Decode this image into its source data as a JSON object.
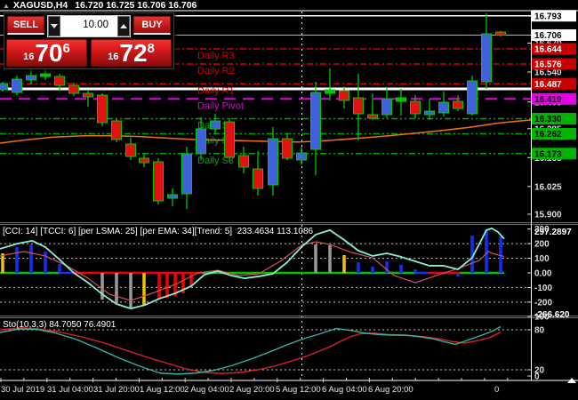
{
  "window": {
    "menu_icon": "▲",
    "symbol_title": "XAGUSD,H4",
    "ohlc": "16.720 16.725 16.706 16.706"
  },
  "trade_panel": {
    "sell_label": "SELL",
    "buy_label": "BUY",
    "volume": "10.00",
    "sell_price": {
      "prefix": "16",
      "main": "70",
      "sup": "6"
    },
    "buy_price": {
      "prefix": "16",
      "main": "72",
      "sup": "8"
    }
  },
  "colors": {
    "bull": "#3E63D8",
    "bear": "#E01212",
    "outline": "#00C800",
    "pivot_r": "#D40000",
    "pivot_p": "#E400E4",
    "pivot_s": "#00A800",
    "ma": "#F07018",
    "bid_line": "#AFAFBE",
    "white_level": "#FFFFFF",
    "cci_fast": "#8BEED0",
    "cci_slow": "#D45454",
    "sto_main": "#38B2A8",
    "sto_signal": "#E02020",
    "hist": {
      "b": "#1430F0",
      "g": "#9A9A9A",
      "y": "#EFC400",
      "r": "#F00000",
      "zg": "#00C000",
      "zb": "#1430F0",
      "zr": "#F00000"
    },
    "axis_text": "#DCDCDC",
    "grid": "#C8C8C8"
  },
  "chart_data": {
    "main": {
      "type": "candlestick",
      "symbol": "XAGUSD",
      "timeframe": "H4",
      "bid_line": 16.706,
      "white_levels": [
        16.793,
        16.464
      ],
      "period_separator_x": 339.5,
      "pivot_lines": [
        {
          "label": "Daily R3",
          "value": 16.644,
          "type": "r"
        },
        {
          "label": "Daily R2",
          "value": 16.576,
          "type": "r"
        },
        {
          "label": "Daily R1",
          "value": 16.487,
          "type": "r"
        },
        {
          "label": "Daily Pivot",
          "value": 16.419,
          "type": "p"
        },
        {
          "label": "Daily S1",
          "value": 16.33,
          "type": "s"
        },
        {
          "label": "Daily S2",
          "value": 16.262,
          "type": "s"
        },
        {
          "label": "Daily S3",
          "value": 16.173,
          "type": "s"
        }
      ],
      "ma_series": [
        [
          0,
          16.22
        ],
        [
          30,
          16.235
        ],
        [
          60,
          16.247
        ],
        [
          95,
          16.253
        ],
        [
          130,
          16.253
        ],
        [
          160,
          16.249
        ],
        [
          190,
          16.242
        ],
        [
          220,
          16.236
        ],
        [
          250,
          16.233
        ],
        [
          280,
          16.23
        ],
        [
          310,
          16.227
        ],
        [
          335,
          16.225
        ],
        [
          355,
          16.228
        ],
        [
          380,
          16.235
        ],
        [
          410,
          16.244
        ],
        [
          440,
          16.254
        ],
        [
          470,
          16.266
        ],
        [
          500,
          16.278
        ],
        [
          530,
          16.292
        ],
        [
          560,
          16.31
        ],
        [
          580,
          16.318
        ],
        [
          597,
          16.324
        ]
      ],
      "candles": [
        [
          3,
          16.46,
          16.496,
          16.452,
          16.488,
          "bull"
        ],
        [
          19,
          16.448,
          16.524,
          16.436,
          16.508,
          "bull"
        ],
        [
          35,
          16.504,
          16.576,
          16.484,
          16.524,
          "bull"
        ],
        [
          51,
          16.52,
          16.58,
          16.504,
          16.532,
          "doji"
        ],
        [
          67,
          16.52,
          16.532,
          16.46,
          16.48,
          "bear"
        ],
        [
          83,
          16.48,
          16.492,
          16.432,
          16.444,
          "bear"
        ],
        [
          99,
          16.444,
          16.456,
          16.384,
          16.428,
          "bear"
        ],
        [
          115,
          16.436,
          16.444,
          16.296,
          16.312,
          "bear"
        ],
        [
          131,
          16.32,
          16.332,
          16.224,
          16.236,
          "bear"
        ],
        [
          147,
          16.216,
          16.244,
          16.144,
          16.16,
          "bear"
        ],
        [
          162,
          16.152,
          16.176,
          16.112,
          16.132,
          "bear"
        ],
        [
          178,
          16.136,
          16.152,
          15.944,
          15.96,
          "bear"
        ],
        [
          194,
          15.972,
          16.016,
          15.936,
          15.988,
          "bull"
        ],
        [
          210,
          15.992,
          16.204,
          15.924,
          16.172,
          "bull"
        ],
        [
          226,
          16.172,
          16.336,
          16.144,
          16.284,
          "bull"
        ],
        [
          242,
          16.284,
          16.352,
          16.264,
          16.32,
          "bull"
        ],
        [
          258,
          16.316,
          16.332,
          16.136,
          16.156,
          "bear"
        ],
        [
          274,
          16.164,
          16.204,
          16.084,
          16.112,
          "bear"
        ],
        [
          290,
          16.104,
          16.184,
          15.984,
          16.016,
          "bear"
        ],
        [
          307,
          16.032,
          16.292,
          15.984,
          16.24,
          "bull"
        ],
        [
          323,
          16.24,
          16.264,
          16.144,
          16.152,
          "bear"
        ],
        [
          339,
          16.144,
          16.204,
          16.124,
          16.176,
          "bull"
        ],
        [
          355,
          16.192,
          16.496,
          16.076,
          16.448,
          "bull"
        ],
        [
          371,
          16.444,
          16.556,
          16.412,
          16.46,
          "doji"
        ],
        [
          387,
          16.456,
          16.476,
          16.376,
          16.412,
          "bear"
        ],
        [
          403,
          16.424,
          16.532,
          16.232,
          16.352,
          "bear"
        ],
        [
          419,
          16.348,
          16.444,
          16.324,
          16.332,
          "bear"
        ],
        [
          435,
          16.348,
          16.472,
          16.332,
          16.42,
          "bull"
        ],
        [
          451,
          16.408,
          16.464,
          16.344,
          16.424,
          "doji"
        ],
        [
          467,
          16.408,
          16.436,
          16.332,
          16.352,
          "bear"
        ],
        [
          483,
          16.348,
          16.42,
          16.324,
          16.364,
          "bull"
        ],
        [
          499,
          16.356,
          16.452,
          16.34,
          16.404,
          "bull"
        ],
        [
          515,
          16.408,
          16.436,
          16.364,
          16.376,
          "bear"
        ],
        [
          531,
          16.352,
          16.524,
          16.344,
          16.5,
          "bull"
        ],
        [
          547,
          16.496,
          16.804,
          16.464,
          16.712,
          "bull"
        ],
        [
          563,
          16.72,
          16.725,
          16.7,
          16.706,
          "bear"
        ]
      ],
      "price_axis": {
        "plain_labels": [
          "16.670",
          "16.540",
          "16.405",
          "16.285",
          "16.155",
          "16.025",
          "15.900"
        ],
        "boxes": [
          {
            "t": "16.793",
            "bg": "#FFFFFF",
            "fg": "#000000"
          },
          {
            "t": "16.706",
            "bg": "#FFFFFF",
            "fg": "#000000"
          },
          {
            "t": "16.644",
            "bg": "#C80000",
            "fg": "#FFFFFF"
          },
          {
            "t": "16.576",
            "bg": "#C80000",
            "fg": "#FFFFFF"
          },
          {
            "t": "16.487",
            "bg": "#C80000",
            "fg": "#FFFFFF"
          },
          {
            "t": "16.419",
            "bg": "#E800E8",
            "fg": "#000000"
          },
          {
            "t": "16.330",
            "bg": "#00B400",
            "fg": "#000000"
          },
          {
            "t": "16.262",
            "bg": "#00B400",
            "fg": "#000000"
          },
          {
            "t": "16.173",
            "bg": "#00B400",
            "fg": "#000000"
          }
        ]
      }
    },
    "cci": {
      "type": "bar",
      "label": "[CCI: 14] [TCCI: 6] [per LSMA: 25] [per EMA: 34][Trend: 5]  233.4634 113.1086",
      "current_values": [
        233.4634,
        113.1086
      ],
      "axis_labels": [
        [
          300,
          "300"
        ],
        [
          200,
          "200"
        ],
        [
          100,
          "100"
        ],
        [
          0,
          "0.00"
        ],
        [
          -100,
          "-100"
        ],
        [
          -200,
          "-200"
        ]
      ],
      "current_labels": [
        [
          297.2897,
          "297.2897"
        ],
        [
          -266.62,
          "-266.620"
        ]
      ],
      "grid": [
        200,
        100,
        -100,
        -200
      ],
      "bars": [
        [
          3,
          134,
          "y"
        ],
        [
          19,
          177,
          "b"
        ],
        [
          35,
          195,
          "b"
        ],
        [
          51,
          146,
          "b"
        ],
        [
          67,
          61,
          "b"
        ],
        [
          115,
          -183,
          "g"
        ],
        [
          131,
          -207,
          "g"
        ],
        [
          147,
          -244,
          "g"
        ],
        [
          162,
          -220,
          "y"
        ],
        [
          179,
          -183,
          "r"
        ],
        [
          188,
          -171,
          "r"
        ],
        [
          197,
          -159,
          "r"
        ],
        [
          206,
          -140,
          "r"
        ],
        [
          215,
          -91,
          "r"
        ],
        [
          355,
          195,
          "g"
        ],
        [
          371,
          189,
          "g"
        ],
        [
          387,
          122,
          "y"
        ],
        [
          403,
          73,
          "b"
        ],
        [
          419,
          43,
          "b"
        ],
        [
          435,
          79,
          "b"
        ],
        [
          451,
          55,
          "b"
        ],
        [
          467,
          24,
          "b"
        ],
        [
          515,
          -24,
          "b"
        ],
        [
          531,
          256,
          "b"
        ],
        [
          547,
          299,
          "b"
        ],
        [
          563,
          250,
          "b"
        ]
      ],
      "zero_segments": [
        [
          0,
          67,
          "zg"
        ],
        [
          67,
          83,
          "zb"
        ],
        [
          83,
          227,
          "zr"
        ],
        [
          227,
          467,
          "zg"
        ],
        [
          467,
          482,
          "zb"
        ],
        [
          482,
          517,
          "zr"
        ],
        [
          517,
          567,
          "zg"
        ]
      ],
      "fast_line": [
        [
          0,
          165
        ],
        [
          20,
          201
        ],
        [
          36,
          220
        ],
        [
          51,
          177
        ],
        [
          67,
          91
        ],
        [
          83,
          0
        ],
        [
          99,
          -67
        ],
        [
          115,
          -146
        ],
        [
          131,
          -213
        ],
        [
          147,
          -244
        ],
        [
          163,
          -220
        ],
        [
          179,
          -177
        ],
        [
          197,
          -140
        ],
        [
          215,
          -91
        ],
        [
          230,
          -12
        ],
        [
          245,
          12
        ],
        [
          260,
          -18
        ],
        [
          275,
          -37
        ],
        [
          291,
          -24
        ],
        [
          307,
          -6
        ],
        [
          323,
          73
        ],
        [
          339,
          177
        ],
        [
          355,
          262
        ],
        [
          371,
          293
        ],
        [
          387,
          226
        ],
        [
          403,
          152
        ],
        [
          419,
          116
        ],
        [
          435,
          134
        ],
        [
          451,
          110
        ],
        [
          467,
          79
        ],
        [
          483,
          49
        ],
        [
          499,
          49
        ],
        [
          515,
          24
        ],
        [
          531,
          104
        ],
        [
          547,
          293
        ],
        [
          553,
          305
        ],
        [
          560,
          280
        ],
        [
          567,
          233
        ]
      ],
      "slow_line": [
        [
          0,
          116
        ],
        [
          27,
          146
        ],
        [
          51,
          116
        ],
        [
          75,
          49
        ],
        [
          99,
          -37
        ],
        [
          123,
          -146
        ],
        [
          147,
          -189
        ],
        [
          171,
          -140
        ],
        [
          197,
          -79
        ],
        [
          223,
          0
        ],
        [
          245,
          18
        ],
        [
          268,
          -18
        ],
        [
          291,
          -6
        ],
        [
          315,
          79
        ],
        [
          339,
          189
        ],
        [
          355,
          213
        ],
        [
          371,
          195
        ],
        [
          395,
          140
        ],
        [
          419,
          104
        ],
        [
          443,
          -18
        ],
        [
          467,
          -67
        ],
        [
          491,
          -18
        ],
        [
          515,
          30
        ],
        [
          539,
          85
        ],
        [
          549,
          146
        ],
        [
          556,
          128
        ],
        [
          567,
          113
        ]
      ]
    },
    "sto": {
      "type": "line",
      "label": "Sto(10,3,3) 84.7050 76.4901",
      "current_values": [
        84.705,
        76.4901
      ],
      "axis_labels": [
        [
          100,
          "100"
        ],
        [
          80,
          "80"
        ],
        [
          20,
          "20"
        ],
        [
          0,
          "0"
        ]
      ],
      "grid": [
        80,
        20
      ],
      "main_line": [
        [
          0,
          76
        ],
        [
          20,
          81
        ],
        [
          40,
          81
        ],
        [
          60,
          76
        ],
        [
          85,
          66
        ],
        [
          110,
          52
        ],
        [
          135,
          37
        ],
        [
          160,
          24
        ],
        [
          180,
          15
        ],
        [
          200,
          13.5
        ],
        [
          220,
          15
        ],
        [
          240,
          19
        ],
        [
          260,
          26
        ],
        [
          280,
          35
        ],
        [
          300,
          45
        ],
        [
          320,
          56
        ],
        [
          340,
          66
        ],
        [
          360,
          74
        ],
        [
          378,
          82
        ],
        [
          395,
          79
        ],
        [
          410,
          75
        ],
        [
          425,
          73
        ],
        [
          440,
          72
        ],
        [
          455,
          72
        ],
        [
          470,
          70
        ],
        [
          485,
          67
        ],
        [
          500,
          62
        ],
        [
          512,
          58
        ],
        [
          525,
          64
        ],
        [
          540,
          71
        ],
        [
          552,
          77
        ],
        [
          563,
          84.7
        ]
      ],
      "signal_line": [
        [
          0,
          80
        ],
        [
          25,
          83
        ],
        [
          45,
          81
        ],
        [
          65,
          77
        ],
        [
          90,
          70
        ],
        [
          115,
          61
        ],
        [
          140,
          50
        ],
        [
          165,
          39
        ],
        [
          190,
          29
        ],
        [
          210,
          21
        ],
        [
          230,
          16
        ],
        [
          250,
          14.5
        ],
        [
          270,
          16
        ],
        [
          290,
          20
        ],
        [
          310,
          26
        ],
        [
          330,
          34
        ],
        [
          350,
          43
        ],
        [
          370,
          54
        ],
        [
          385,
          64
        ],
        [
          395,
          70
        ],
        [
          405,
          74
        ],
        [
          420,
          75
        ],
        [
          435,
          73
        ],
        [
          450,
          72
        ],
        [
          465,
          71
        ],
        [
          480,
          69
        ],
        [
          495,
          66
        ],
        [
          510,
          62
        ],
        [
          522,
          60
        ],
        [
          535,
          63
        ],
        [
          550,
          68
        ],
        [
          563,
          76.5
        ]
      ]
    },
    "time_axis": {
      "labels": [
        [
          1,
          "30 Jul 2019"
        ],
        [
          53,
          "31 Jul 04:00"
        ],
        [
          105,
          "31 Jul 20:00"
        ],
        [
          157,
          "1 Aug 12:00"
        ],
        [
          207,
          "2 Aug 04:00"
        ],
        [
          258,
          "2 Aug 20:00"
        ],
        [
          310,
          "5 Aug 12:00"
        ],
        [
          362,
          "6 Aug 04:00"
        ],
        [
          414,
          "6 Aug 20:00"
        ],
        [
          556,
          "0"
        ]
      ]
    }
  }
}
